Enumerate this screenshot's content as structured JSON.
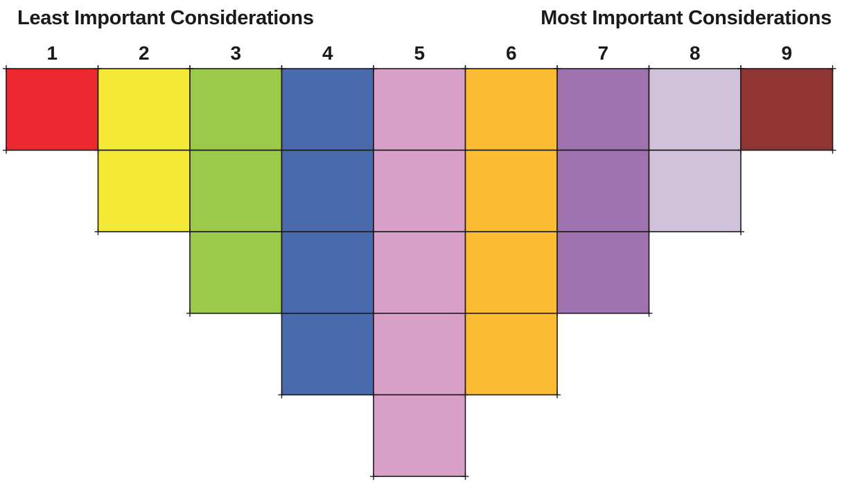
{
  "headings": {
    "left": "Least Important Considerations",
    "right": "Most Important Considerations"
  },
  "grid": {
    "columns": [
      {
        "label": "1",
        "cells": 1,
        "color": "#ec2831"
      },
      {
        "label": "2",
        "cells": 2,
        "color": "#f4e936"
      },
      {
        "label": "3",
        "cells": 3,
        "color": "#9bc94a"
      },
      {
        "label": "4",
        "cells": 4,
        "color": "#496bad"
      },
      {
        "label": "5",
        "cells": 5,
        "color": "#d8a0c9"
      },
      {
        "label": "6",
        "cells": 4,
        "color": "#fbbc34"
      },
      {
        "label": "7",
        "cells": 3,
        "color": "#9f72b0"
      },
      {
        "label": "8",
        "cells": 2,
        "color": "#cfc2da"
      },
      {
        "label": "9",
        "cells": 1,
        "color": "#913535"
      }
    ]
  }
}
